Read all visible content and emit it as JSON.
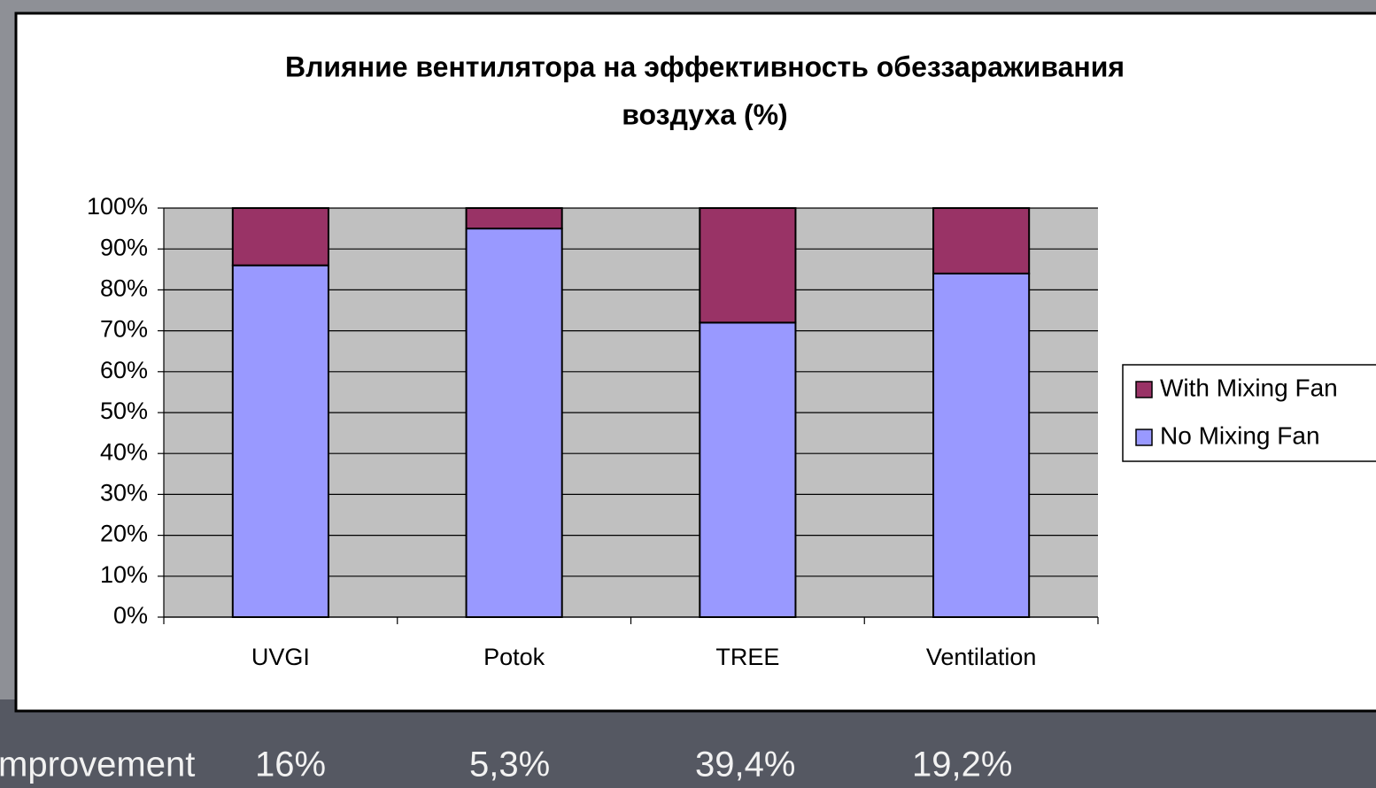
{
  "chart_data": {
    "type": "stacked_bar",
    "title": [
      "Влияние вентилятора на эффективность обеззараживания",
      "воздуха (%)"
    ],
    "categories": [
      "UVGI",
      "Potok",
      "TREE",
      "Ventilation"
    ],
    "series": [
      {
        "name": "No Mixing Fan",
        "color": "#9999ff",
        "values": [
          86,
          95,
          72,
          84
        ]
      },
      {
        "name": "With Mixing Fan",
        "color": "#993366",
        "values": [
          14,
          5,
          28,
          16
        ]
      }
    ],
    "ylim": [
      0,
      100
    ],
    "yticks": [
      {
        "value": 0,
        "label": "0%"
      },
      {
        "value": 10,
        "label": "10%"
      },
      {
        "value": 20,
        "label": "20%"
      },
      {
        "value": 30,
        "label": "30%"
      },
      {
        "value": 40,
        "label": "40%"
      },
      {
        "value": 50,
        "label": "50%"
      },
      {
        "value": 60,
        "label": "60%"
      },
      {
        "value": 70,
        "label": "70%"
      },
      {
        "value": 80,
        "label": "80%"
      },
      {
        "value": 90,
        "label": "90%"
      },
      {
        "value": 100,
        "label": "100%"
      }
    ],
    "grid": true,
    "legend": "right",
    "footer": {
      "label": "mprovement",
      "values": [
        "16%",
        "5,3%",
        "39,4%",
        "19,2%"
      ]
    }
  }
}
